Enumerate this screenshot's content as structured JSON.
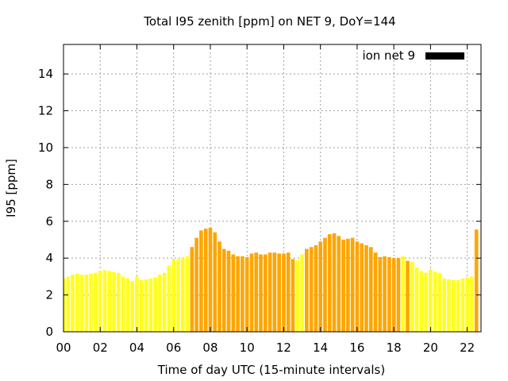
{
  "chart_data": {
    "type": "bar",
    "title": "Total I95 zenith [ppm] on NET 9, DoY=144",
    "xlabel": "Time of day UTC (15-minute intervals)",
    "ylabel": "I95 [ppm]",
    "xlim": [
      0,
      22.75
    ],
    "ylim": [
      0,
      15.6
    ],
    "xticks": [
      "00",
      "02",
      "04",
      "06",
      "08",
      "10",
      "12",
      "14",
      "16",
      "18",
      "20",
      "22"
    ],
    "yticks": [
      "0",
      "2",
      "4",
      "6",
      "8",
      "10",
      "12",
      "14"
    ],
    "grid": true,
    "legend": {
      "position": "top-right",
      "label": "ion net 9",
      "swatch_color": "#000000"
    },
    "colors": {
      "low": "#ffff1f",
      "high": "#ffa500"
    },
    "interval_hours": 0.25,
    "series": [
      {
        "values": [
          2.9,
          3.0,
          3.1,
          3.15,
          3.1,
          3.1,
          3.15,
          3.2,
          3.3,
          3.35,
          3.3,
          3.25,
          3.2,
          3.0,
          2.9,
          2.75,
          3.0,
          2.8,
          2.85,
          2.9,
          2.95,
          3.1,
          3.2,
          3.6,
          3.9,
          3.95,
          4.0,
          4.1,
          4.6,
          5.1,
          5.5,
          5.6,
          5.65,
          5.4,
          4.9,
          4.5,
          4.4,
          4.2,
          4.1,
          4.1,
          4.05,
          4.25,
          4.3,
          4.2,
          4.2,
          4.3,
          4.3,
          4.25,
          4.25,
          4.3,
          3.95,
          3.9,
          4.2,
          4.5,
          4.6,
          4.7,
          4.9,
          5.1,
          5.3,
          5.35,
          5.2,
          5.0,
          5.05,
          5.1,
          4.9,
          4.8,
          4.7,
          4.6,
          4.3,
          4.05,
          4.1,
          4.05,
          4.0,
          4.0,
          4.1,
          3.85,
          3.8,
          3.5,
          3.3,
          3.2,
          3.4,
          3.25,
          3.2,
          2.9,
          2.85,
          2.8,
          2.8,
          2.9,
          2.95,
          3.0,
          5.55
        ],
        "levels": [
          "low",
          "low",
          "low",
          "low",
          "low",
          "low",
          "low",
          "low",
          "low",
          "low",
          "low",
          "low",
          "low",
          "low",
          "low",
          "low",
          "low",
          "low",
          "low",
          "low",
          "low",
          "low",
          "low",
          "low",
          "low",
          "low",
          "low",
          "low",
          "high",
          "high",
          "high",
          "high",
          "high",
          "high",
          "high",
          "high",
          "high",
          "high",
          "high",
          "high",
          "high",
          "high",
          "high",
          "high",
          "high",
          "high",
          "high",
          "high",
          "high",
          "high",
          "high",
          "low",
          "low",
          "high",
          "high",
          "high",
          "high",
          "high",
          "high",
          "high",
          "high",
          "high",
          "high",
          "high",
          "high",
          "high",
          "high",
          "high",
          "high",
          "high",
          "high",
          "high",
          "high",
          "high",
          "low",
          "high",
          "low",
          "low",
          "low",
          "low",
          "low",
          "low",
          "low",
          "low",
          "low",
          "low",
          "low",
          "low",
          "low",
          "low",
          "high"
        ]
      }
    ]
  }
}
